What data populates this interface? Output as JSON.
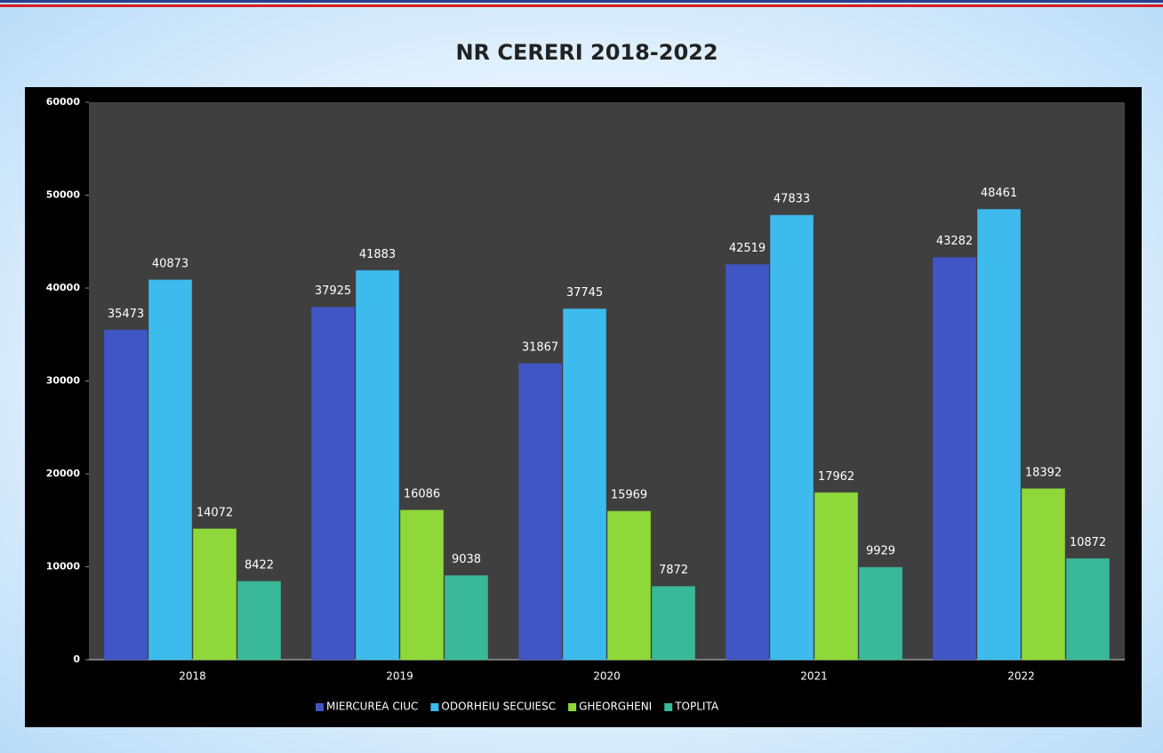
{
  "chart_data": {
    "type": "bar",
    "title": "NR CERERI 2018-2022",
    "categories": [
      "2018",
      "2019",
      "2020",
      "2021",
      "2022"
    ],
    "series": [
      {
        "name": "MIERCUREA CIUC",
        "color": "#3f56c4",
        "values": [
          35473,
          37925,
          31867,
          42519,
          43282
        ]
      },
      {
        "name": "ODORHEIU SECUIESC",
        "color": "#3dbbec",
        "values": [
          40873,
          41883,
          37745,
          47833,
          48461
        ]
      },
      {
        "name": "GHEORGHENI",
        "color": "#8ed83a",
        "values": [
          14072,
          16086,
          15969,
          17962,
          18392
        ]
      },
      {
        "name": "TOPLITA",
        "color": "#3ab89a",
        "values": [
          8422,
          9038,
          7872,
          9929,
          10872
        ]
      }
    ],
    "ylim": [
      0,
      60000
    ],
    "yticks": [
      0,
      10000,
      20000,
      30000,
      40000,
      50000,
      60000
    ],
    "legend": "bottom"
  }
}
